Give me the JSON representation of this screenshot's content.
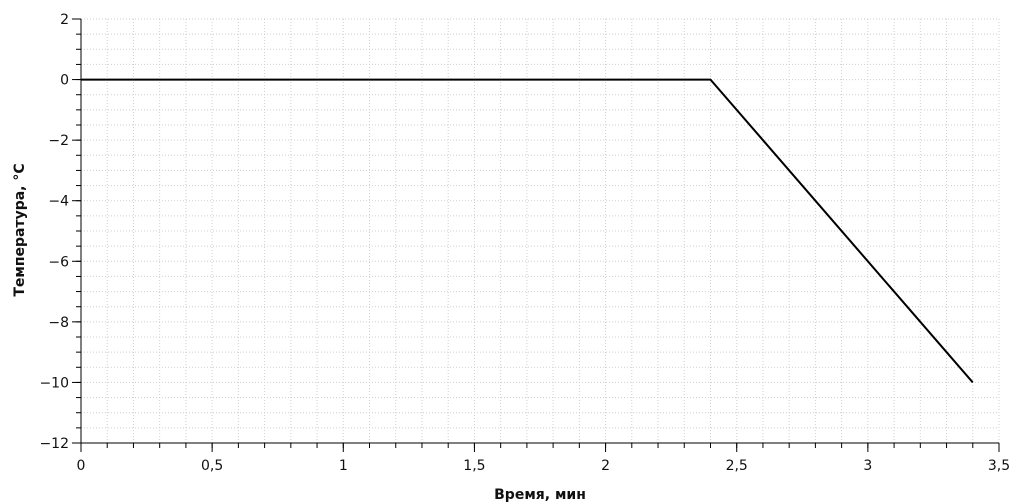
{
  "chart_data": {
    "type": "line",
    "title": "",
    "xlabel": "Время, мин",
    "ylabel": "Температура, °С",
    "xlim": [
      0,
      3.5
    ],
    "ylim": [
      -12,
      2
    ],
    "x_ticks": [
      0,
      0.5,
      1,
      1.5,
      2,
      2.5,
      3,
      3.5
    ],
    "x_tick_labels": [
      "0",
      "0,5",
      "1",
      "1,5",
      "2",
      "2,5",
      "3",
      "3,5"
    ],
    "y_ticks": [
      2,
      0,
      -2,
      -4,
      -6,
      -8,
      -10,
      -12
    ],
    "y_tick_labels": [
      "2",
      "0",
      "−2",
      "−4",
      "−6",
      "−8",
      "−10",
      "−12"
    ],
    "grid": true,
    "grid_style": "dotted minor grid",
    "x_minor_step": 0.1,
    "y_minor_step": 0.5,
    "series": [
      {
        "x": [
          0,
          2.4,
          3.4
        ],
        "y": [
          0,
          0,
          -10
        ],
        "color": "#000000"
      }
    ],
    "colors": {
      "line": "#000000",
      "axis": "#000000",
      "grid": "#cfcfcf",
      "background": "#ffffff"
    }
  }
}
